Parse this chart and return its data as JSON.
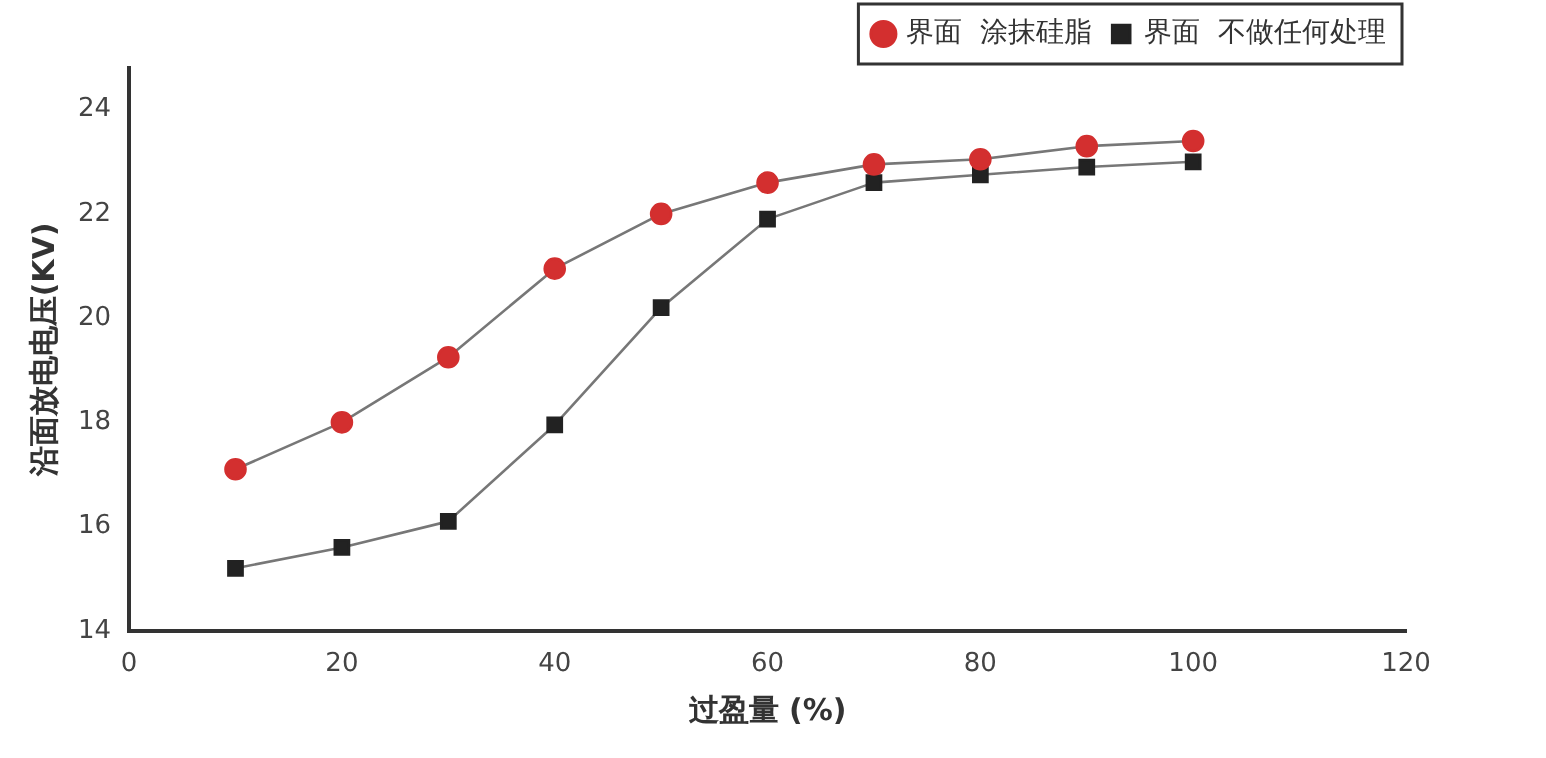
{
  "chart_data": {
    "type": "line",
    "xlabel": "过盈量 (%)",
    "ylabel": "沿面放电电压(KV)",
    "x": [
      10,
      20,
      30,
      40,
      50,
      60,
      70,
      80,
      90,
      100
    ],
    "series": [
      {
        "name": "界面  涂抹硅脂",
        "color": "#d32f2f",
        "marker": "circle",
        "values": [
          17.1,
          18.0,
          19.25,
          20.95,
          22.0,
          22.6,
          22.95,
          23.05,
          23.3,
          23.4
        ]
      },
      {
        "name": "界面  不做任何处理",
        "color": "#222222",
        "marker": "square",
        "values": [
          15.2,
          15.6,
          16.1,
          17.95,
          20.2,
          21.9,
          22.6,
          22.75,
          22.9,
          23.0
        ]
      }
    ],
    "xlim": [
      0,
      120
    ],
    "xticks": [
      0,
      20,
      40,
      60,
      80,
      100,
      120
    ],
    "ylim": [
      14,
      24.8
    ],
    "yticks": [
      14,
      16,
      18,
      20,
      22,
      24
    ],
    "grid": false,
    "legend": "top right"
  }
}
